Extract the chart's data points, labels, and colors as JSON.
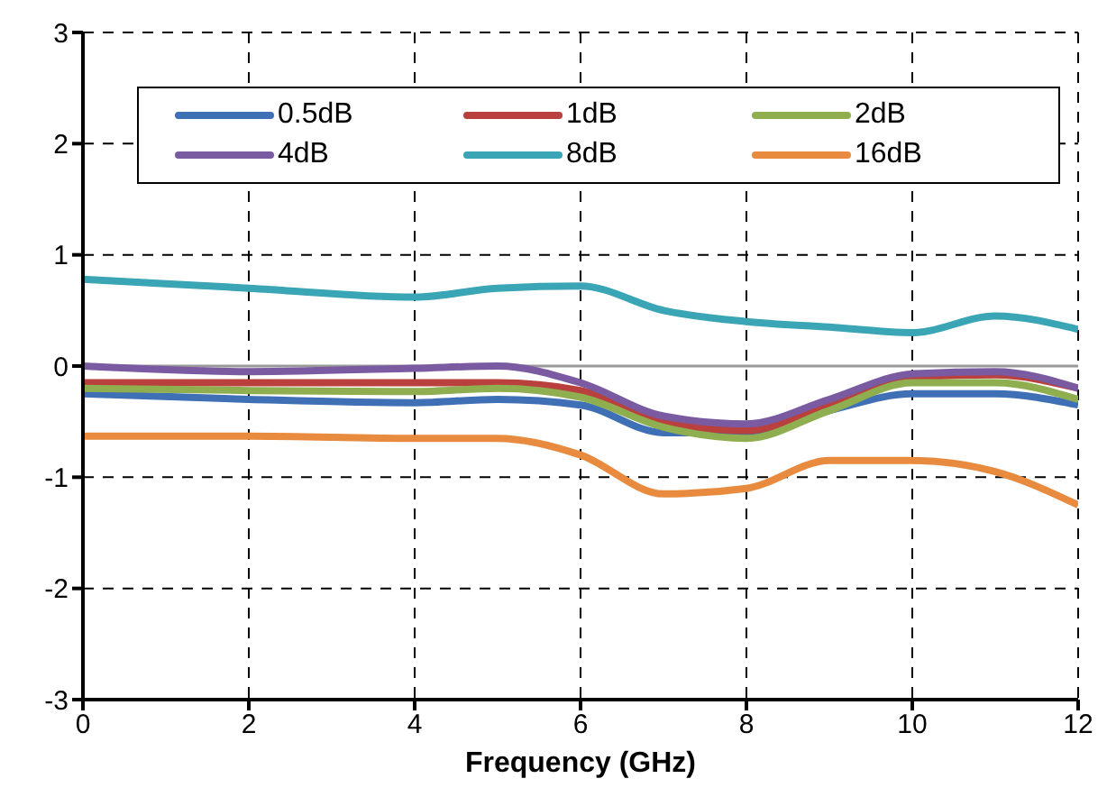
{
  "chart_data": {
    "type": "line",
    "xlabel": "Frequency (GHz)",
    "x": [
      0,
      2,
      4,
      5,
      6,
      7,
      8,
      9,
      10,
      11,
      12
    ],
    "series": [
      {
        "name": "0.5dB",
        "color": "#3f6fb5",
        "values": [
          -0.25,
          -0.3,
          -0.33,
          -0.3,
          -0.35,
          -0.6,
          -0.6,
          -0.4,
          -0.25,
          -0.25,
          -0.35
        ]
      },
      {
        "name": "1dB",
        "color": "#b9403d",
        "values": [
          -0.15,
          -0.15,
          -0.15,
          -0.15,
          -0.22,
          -0.5,
          -0.58,
          -0.35,
          -0.1,
          -0.08,
          -0.2
        ]
      },
      {
        "name": "2dB",
        "color": "#8fae4f",
        "values": [
          -0.2,
          -0.22,
          -0.23,
          -0.2,
          -0.28,
          -0.55,
          -0.65,
          -0.4,
          -0.15,
          -0.15,
          -0.3
        ]
      },
      {
        "name": "4dB",
        "color": "#7a5aa0",
        "values": [
          0,
          -0.05,
          -0.02,
          0,
          -0.15,
          -0.45,
          -0.52,
          -0.3,
          -0.07,
          -0.05,
          -0.2
        ]
      },
      {
        "name": "8dB",
        "color": "#3aa5b5",
        "values": [
          0.78,
          0.7,
          0.62,
          0.7,
          0.72,
          0.5,
          0.4,
          0.35,
          0.3,
          0.45,
          0.33
        ]
      },
      {
        "name": "16dB",
        "color": "#e88b3f",
        "values": [
          -0.63,
          -0.63,
          -0.65,
          -0.65,
          -0.8,
          -1.15,
          -1.1,
          -0.85,
          -0.85,
          -0.95,
          -1.25
        ]
      }
    ],
    "xlim": [
      0,
      12
    ],
    "xticks": [
      0,
      2,
      4,
      6,
      8,
      10,
      12
    ],
    "ylim": [
      -3,
      3
    ],
    "yticks": [
      -3,
      -2,
      -1,
      0,
      1,
      2,
      3
    ],
    "ref_lines": [
      {
        "axis": "y",
        "value": 0,
        "color": "#999999",
        "line_style": "solid"
      }
    ],
    "grid": true,
    "legend": "top",
    "marker": "none",
    "line_style": "solid"
  }
}
